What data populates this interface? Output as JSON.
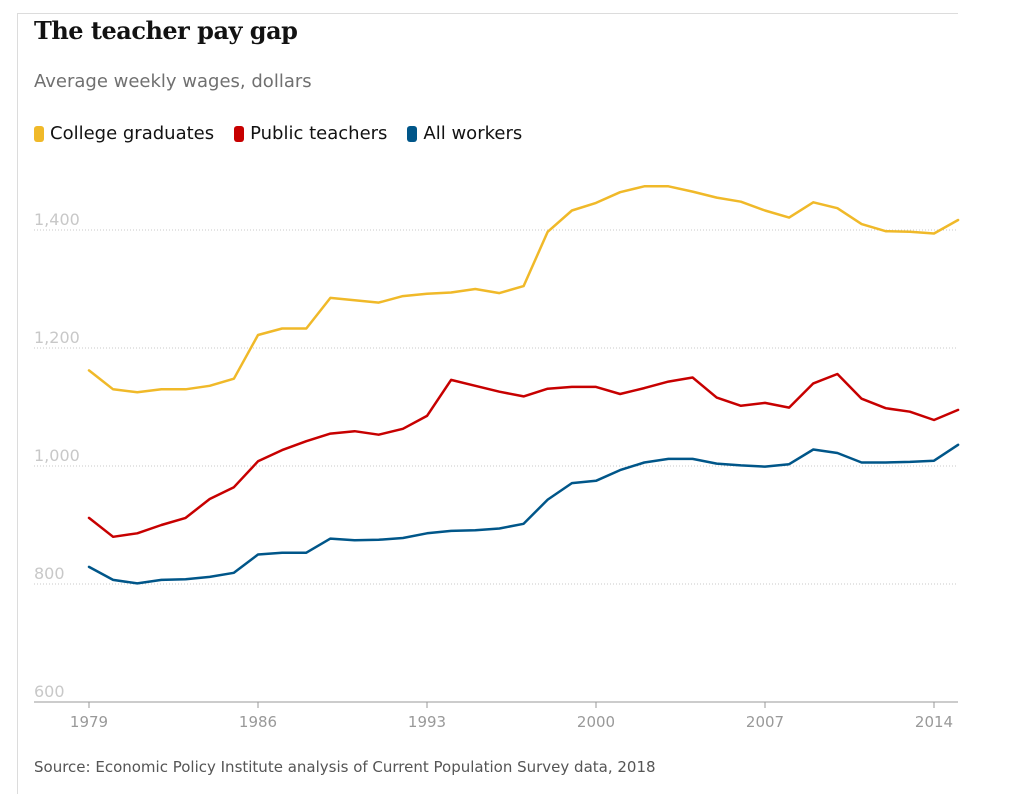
{
  "title": "The teacher pay gap",
  "subtitle": "Average weekly wages, dollars",
  "source": "Source: Economic Policy Institute analysis of Current Population Survey data, 2018",
  "legend": [
    {
      "label": "College graduates",
      "color": "#f0b929"
    },
    {
      "label": "Public teachers",
      "color": "#c70000"
    },
    {
      "label": "All workers",
      "color": "#005689"
    }
  ],
  "chart_data": {
    "type": "line",
    "title": "The teacher pay gap",
    "subtitle": "Average weekly wages, dollars",
    "xlabel": "",
    "ylabel": "",
    "xlim": [
      1979,
      2015
    ],
    "ylim": [
      600,
      1450
    ],
    "x_ticks": [
      1979,
      1986,
      1993,
      2000,
      2007,
      2014
    ],
    "y_ticks": [
      600,
      800,
      1000,
      1200,
      1400
    ],
    "y_tick_labels": [
      "600",
      "800",
      "1,000",
      "1,200",
      "1,400"
    ],
    "grid": "horizontal dotted",
    "legend_position": "top-left",
    "x": [
      1979,
      1980,
      1981,
      1982,
      1983,
      1984,
      1985,
      1986,
      1987,
      1988,
      1989,
      1990,
      1991,
      1992,
      1993,
      1994,
      1995,
      1996,
      1997,
      1998,
      1999,
      2000,
      2001,
      2002,
      2003,
      2004,
      2005,
      2006,
      2007,
      2008,
      2009,
      2010,
      2011,
      2012,
      2013,
      2014,
      2015
    ],
    "series": [
      {
        "name": "College graduates",
        "color": "#f0b929",
        "values": [
          1162,
          1130,
          1125,
          1130,
          1130,
          1136,
          1148,
          1222,
          1233,
          1233,
          1285,
          1281,
          1277,
          1288,
          1292,
          1294,
          1300,
          1293,
          1305,
          1397,
          1433,
          1446,
          1464,
          1474,
          1474,
          1465,
          1455,
          1448,
          1433,
          1421,
          1447,
          1437,
          1410,
          1398,
          1397,
          1394,
          1417
        ]
      },
      {
        "name": "Public teachers",
        "color": "#c70000",
        "values": [
          912,
          880,
          886,
          900,
          912,
          944,
          964,
          1008,
          1027,
          1042,
          1055,
          1059,
          1053,
          1063,
          1085,
          1146,
          1136,
          1126,
          1118,
          1131,
          1134,
          1134,
          1122,
          1132,
          1143,
          1150,
          1116,
          1102,
          1107,
          1099,
          1140,
          1156,
          1114,
          1098,
          1092,
          1078,
          1095
        ]
      },
      {
        "name": "All workers",
        "color": "#005689",
        "values": [
          829,
          807,
          801,
          807,
          808,
          812,
          819,
          850,
          853,
          853,
          877,
          874,
          875,
          878,
          886,
          890,
          891,
          894,
          902,
          943,
          971,
          975,
          993,
          1006,
          1012,
          1012,
          1004,
          1001,
          999,
          1003,
          1028,
          1022,
          1006,
          1006,
          1007,
          1009,
          1036
        ]
      }
    ]
  }
}
